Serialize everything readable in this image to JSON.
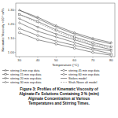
{
  "chart_data": {
    "type": "line",
    "caption": "Figure 3: Profiles of Kinematic Viscosity of\nAlginate-Fe Solutions Containing 3 % (m/m)\nAlginate Concentration at Various\nTemperatures and Stirring Times.",
    "xlabel": "Temperature (°C)",
    "ylabel": "Kinematic Viscosity ×10⁻⁶ m²/s",
    "x": [
      30,
      40,
      50,
      60,
      70,
      80
    ],
    "series": [
      {
        "name": "stirring 0 min exp data",
        "color": "#444444",
        "marker": "triangle-up",
        "line_style": "solid",
        "values": [
          1.3,
          1.25,
          1.19,
          1.14,
          1.1,
          1.07
        ]
      },
      {
        "name": "stirring 15 min exp data",
        "color": "#444444",
        "marker": "square",
        "line_style": "solid",
        "values": [
          1.27,
          1.22,
          1.16,
          1.11,
          1.07,
          1.04
        ]
      },
      {
        "name": "stirring 20 min exp data",
        "color": "#444444",
        "marker": "triangle-down",
        "line_style": "solid",
        "values": [
          1.24,
          1.18,
          1.13,
          1.09,
          1.05,
          1.02
        ]
      },
      {
        "name": "stirring 30 min exp data",
        "color": "#444444",
        "marker": "diamond",
        "line_style": "solid",
        "values": [
          1.21,
          1.15,
          1.11,
          1.07,
          1.03,
          1.01
        ]
      },
      {
        "name": "stirring 45 min exp data",
        "color": "#444444",
        "marker": "circle",
        "line_style": "solid",
        "values": [
          1.17,
          1.12,
          1.08,
          1.05,
          1.02,
          0.99
        ]
      },
      {
        "name": "stirring 60 min exp data",
        "color": "#444444",
        "marker": "pentagon",
        "line_style": "solid",
        "values": [
          1.14,
          1.09,
          1.06,
          1.03,
          1.0,
          0.98
        ]
      },
      {
        "name": "Stokes model",
        "color": "#444444",
        "line_style": "solid",
        "values": [
          1.3,
          1.24,
          1.18,
          1.13,
          1.09,
          1.06
        ]
      },
      {
        "name": "Shah-Nixon alt model",
        "color": "#888888",
        "line_style": "dashed",
        "values": [
          1.27,
          1.21,
          1.15,
          1.1,
          1.06,
          1.03
        ]
      }
    ],
    "xlim": [
      28,
      82
    ],
    "ylim": [
      0.97,
      1.35
    ],
    "xticks": [
      30,
      40,
      50,
      60,
      70,
      80
    ],
    "yticks": [
      {
        "value": 1.0,
        "label": "1.00"
      },
      {
        "value": 1.1,
        "label": "1.10"
      },
      {
        "value": 1.2,
        "label": "1.20"
      },
      {
        "value": 1.3,
        "label": "1.30"
      }
    ],
    "grid": false,
    "legend": "bottom"
  }
}
